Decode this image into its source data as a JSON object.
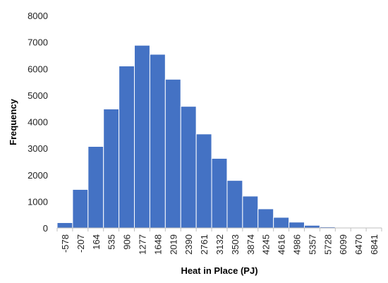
{
  "chart_data": {
    "type": "bar",
    "title": "",
    "xlabel": "Heat in Place (PJ)",
    "ylabel": "Frequency",
    "categories": [
      "-578",
      "-207",
      "164",
      "535",
      "906",
      "1277",
      "1648",
      "2019",
      "2390",
      "2761",
      "3132",
      "3503",
      "3874",
      "4245",
      "4616",
      "4986",
      "5357",
      "5728",
      "6099",
      "6470",
      "6841"
    ],
    "values": [
      200,
      1450,
      3070,
      4480,
      6100,
      6880,
      6540,
      5600,
      4580,
      3540,
      2620,
      1790,
      1200,
      720,
      400,
      220,
      100,
      40,
      10,
      5,
      2
    ],
    "yticks": [
      "0",
      "1000",
      "2000",
      "3000",
      "4000",
      "5000",
      "6000",
      "7000",
      "8000"
    ],
    "ylim": [
      0,
      8000
    ],
    "grid": false,
    "legend": "none",
    "bar_color": "#4472C4"
  }
}
